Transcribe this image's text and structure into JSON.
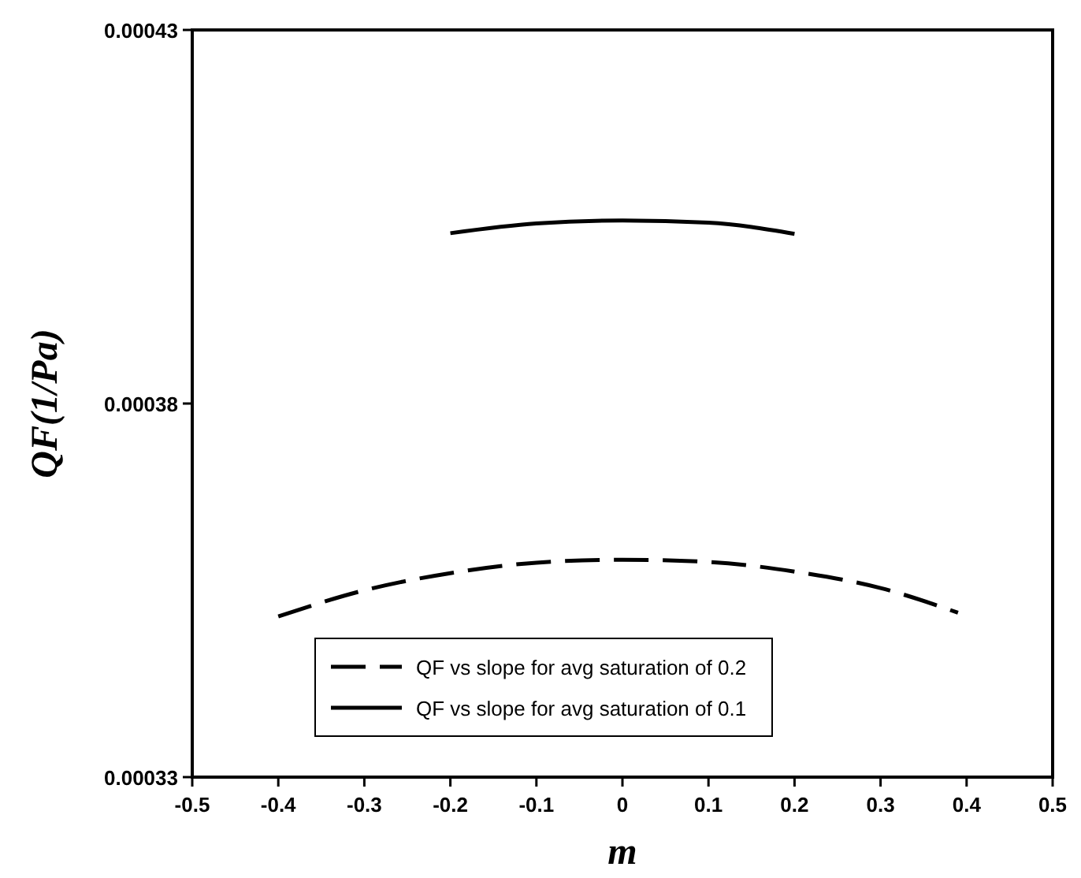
{
  "chart_data": {
    "type": "line",
    "xlabel": "m",
    "ylabel": "QF(1/Pa)",
    "xlim": [
      -0.5,
      0.5
    ],
    "xticks": [
      -0.5,
      -0.4,
      -0.3,
      -0.2,
      -0.1,
      0,
      0.1,
      0.2,
      0.3,
      0.4,
      0.5
    ],
    "ylim": [
      0.00033,
      0.00043
    ],
    "yticks": [
      0.00033,
      0.00038,
      0.00043
    ],
    "grid": false,
    "legend": "bottom",
    "series": [
      {
        "name": "QF vs slope for avg saturation of 0.2",
        "color": "#000000",
        "line_style": "dashed",
        "x": [
          -0.4,
          -0.3,
          -0.2,
          -0.1,
          0,
          0.1,
          0.2,
          0.3,
          0.39
        ],
        "values": [
          0.0003515,
          0.000355,
          0.0003573,
          0.0003587,
          0.0003591,
          0.0003588,
          0.0003575,
          0.0003553,
          0.000352
        ]
      },
      {
        "name": "QF vs slope for avg saturation of 0.1",
        "color": "#000000",
        "line_style": "solid",
        "x": [
          -0.2,
          -0.1,
          0,
          0.1,
          0.2
        ],
        "values": [
          0.0004028,
          0.0004041,
          0.0004045,
          0.0004042,
          0.0004027
        ]
      }
    ]
  }
}
